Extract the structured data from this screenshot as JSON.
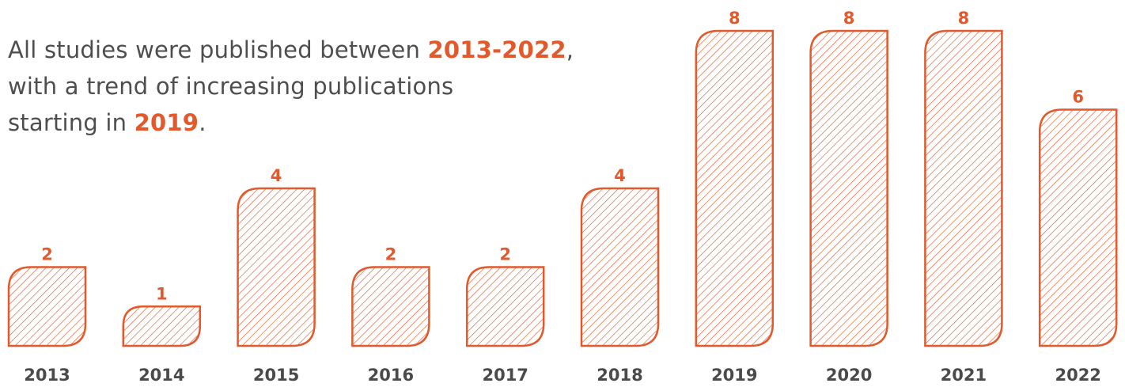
{
  "intro": {
    "line1_prefix": "All studies were published between ",
    "line1_highlight": "2013-2022",
    "line1_suffix": ",",
    "line2": "with a trend of increasing publications",
    "line3_prefix": "starting in ",
    "line3_highlight": "2019",
    "line3_suffix": "."
  },
  "colors": {
    "accent": "#e2592b",
    "text": "#4e4e4e",
    "tick": "#4a4a4a",
    "background": "#ffffff"
  },
  "chart_data": {
    "type": "bar",
    "categories": [
      "2013",
      "2014",
      "2015",
      "2016",
      "2017",
      "2018",
      "2019",
      "2020",
      "2021",
      "2022"
    ],
    "values": [
      2,
      1,
      4,
      2,
      2,
      4,
      8,
      8,
      8,
      6
    ],
    "data_labels": [
      "2",
      "1",
      "4",
      "2",
      "2",
      "4",
      "8",
      "8",
      "8",
      "6"
    ],
    "title": "",
    "xlabel": "",
    "ylabel": "",
    "ylim": [
      0,
      8
    ],
    "grid": false,
    "legend": "none",
    "bar_style": "diagonal-hatch outline"
  }
}
